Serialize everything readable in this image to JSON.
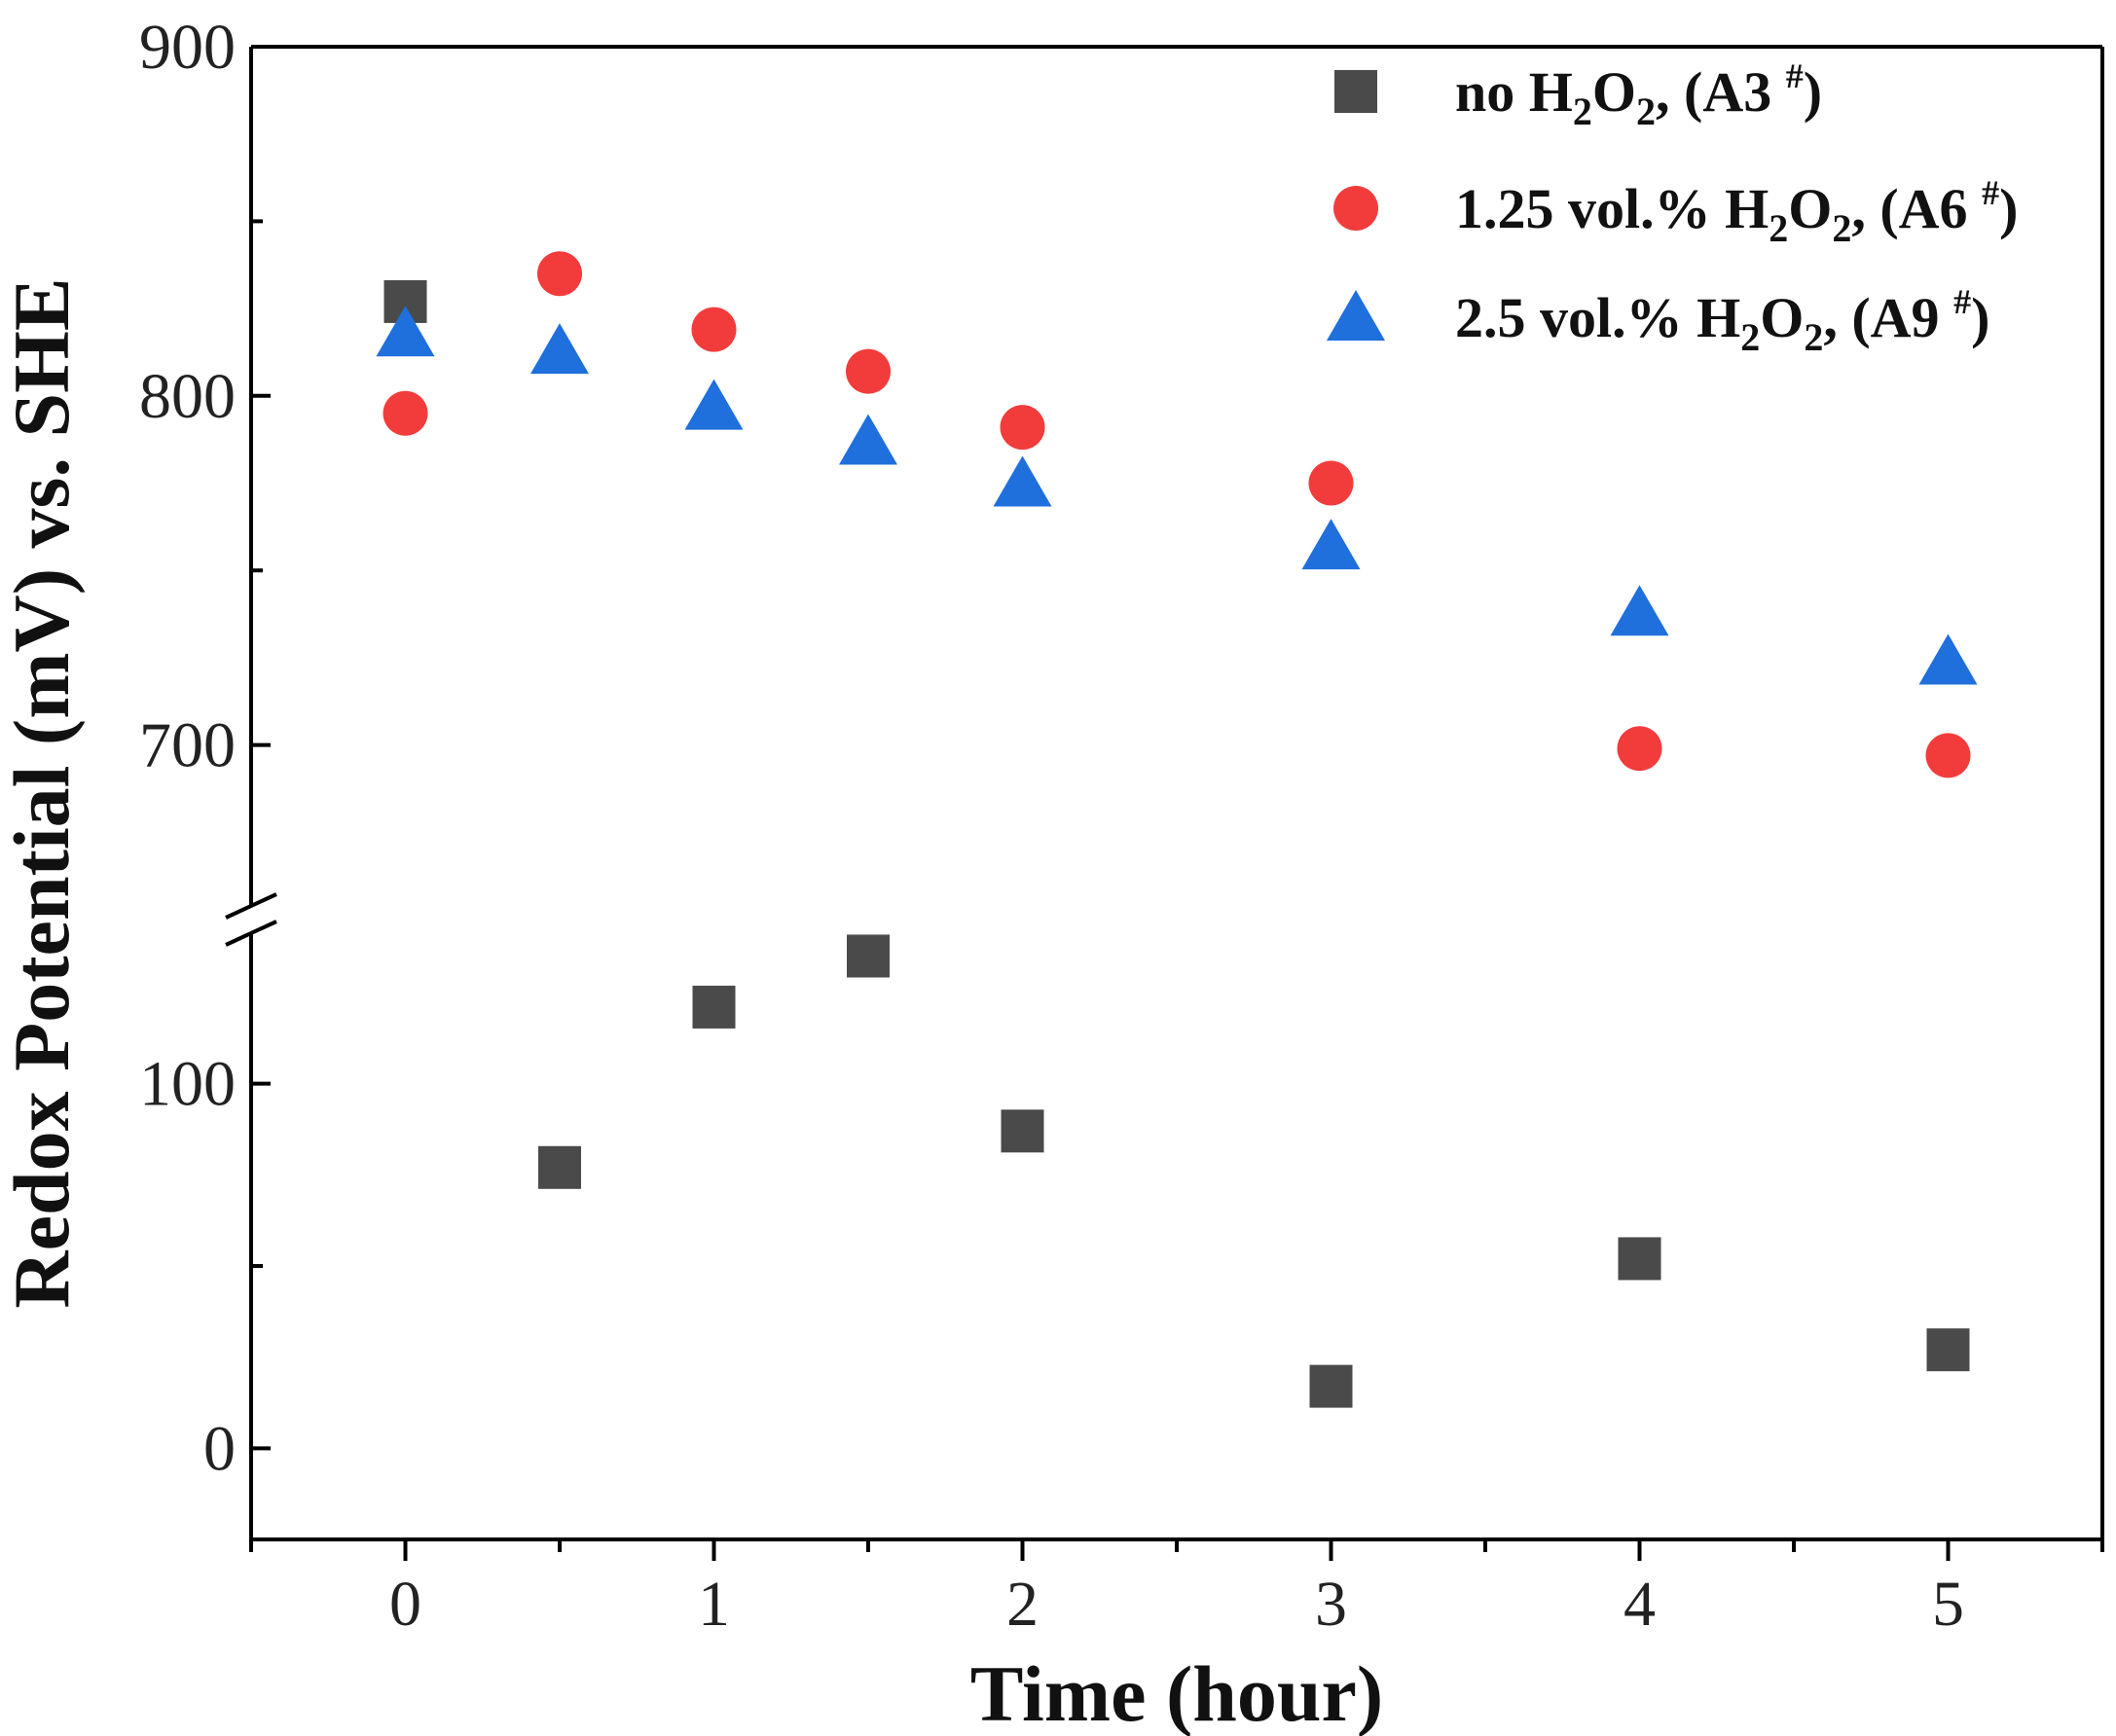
{
  "chart_data": {
    "type": "scatter",
    "title": "",
    "xlabel": "Time (hour)",
    "ylabel": "Redox Potential (mV) vs. SHE",
    "xlim": [
      -0.5,
      5.5
    ],
    "x_ticks": [
      "0",
      "1",
      "2",
      "3",
      "4",
      "5"
    ],
    "y_segments": [
      {
        "name": "lower",
        "ylim": [
          -25,
          145
        ],
        "ticks": [
          "0",
          "100"
        ]
      },
      {
        "name": "upper",
        "ylim": [
          650,
          900
        ],
        "ticks": [
          "700",
          "800",
          "900"
        ]
      }
    ],
    "axis_break": "y",
    "grid": false,
    "legend_position": "top-right",
    "series": [
      {
        "name": "no H2O2, (A3 #)",
        "marker": "square",
        "color": "#4a4a4a",
        "legend": {
          "before": "no H",
          "sub1": "2",
          "mid": "O",
          "sub2": "2",
          "after": ", (A3 ",
          "sup": "#",
          "close": ")"
        },
        "points": [
          {
            "x": 0,
            "y": 827
          },
          {
            "x": 0.5,
            "y": 77
          },
          {
            "x": 1,
            "y": 121
          },
          {
            "x": 1.5,
            "y": 135
          },
          {
            "x": 2,
            "y": 87
          },
          {
            "x": 3,
            "y": 17
          },
          {
            "x": 4,
            "y": 52
          },
          {
            "x": 5,
            "y": 27
          }
        ]
      },
      {
        "name": "1.25 vol.% H2O2, (A6 #)",
        "marker": "circle",
        "color": "#f23c3c",
        "legend": {
          "before": "1.25 vol.% H",
          "sub1": "2",
          "mid": "O",
          "sub2": "2",
          "after": ", (A6 ",
          "sup": "#",
          "close": ")"
        },
        "points": [
          {
            "x": 0,
            "y": 795
          },
          {
            "x": 0.5,
            "y": 835
          },
          {
            "x": 1,
            "y": 819
          },
          {
            "x": 1.5,
            "y": 807
          },
          {
            "x": 2,
            "y": 791
          },
          {
            "x": 3,
            "y": 775
          },
          {
            "x": 4,
            "y": 699
          },
          {
            "x": 5,
            "y": 697
          }
        ]
      },
      {
        "name": "2.5 vol.% H2O2, (A9 #)",
        "marker": "triangle",
        "color": "#1f6fdc",
        "legend": {
          "before": "2.5 vol.% H",
          "sub1": "2",
          "mid": "O",
          "sub2": "2",
          "after": ", (A9 ",
          "sup": "#",
          "close": ")"
        },
        "points": [
          {
            "x": 0,
            "y": 818
          },
          {
            "x": 0.5,
            "y": 813
          },
          {
            "x": 1,
            "y": 797
          },
          {
            "x": 1.5,
            "y": 787
          },
          {
            "x": 2,
            "y": 775
          },
          {
            "x": 3,
            "y": 757
          },
          {
            "x": 4,
            "y": 738
          },
          {
            "x": 5,
            "y": 724
          }
        ]
      }
    ]
  }
}
